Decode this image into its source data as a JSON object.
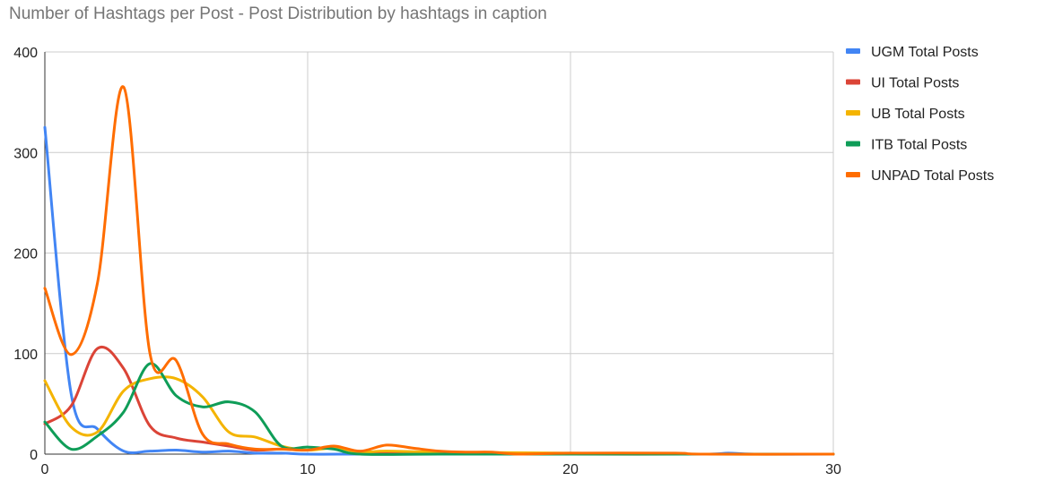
{
  "chart_data": {
    "type": "line",
    "title": "Number of Hashtags per Post - Post Distribution by hashtags in caption",
    "xlabel": "",
    "ylabel": "",
    "xlim": [
      0,
      30
    ],
    "ylim": [
      0,
      400
    ],
    "x_ticks": [
      0,
      10,
      20,
      30
    ],
    "y_ticks": [
      0,
      100,
      200,
      300,
      400
    ],
    "grid": true,
    "smooth": true,
    "legend_position": "right",
    "series": [
      {
        "name": "UGM Total Posts",
        "color": "#4285f4",
        "points": [
          [
            0,
            325
          ],
          [
            1,
            60
          ],
          [
            2,
            25
          ],
          [
            3,
            3
          ],
          [
            4,
            3
          ],
          [
            5,
            4
          ],
          [
            6,
            2
          ],
          [
            7,
            3
          ],
          [
            8,
            1
          ],
          [
            9,
            1
          ],
          [
            10,
            0
          ],
          [
            12,
            0
          ],
          [
            15,
            0
          ],
          [
            20,
            0
          ],
          [
            25,
            0
          ],
          [
            26,
            1
          ],
          [
            27,
            0
          ],
          [
            30,
            0
          ]
        ]
      },
      {
        "name": "UI Total Posts",
        "color": "#db4437",
        "points": [
          [
            0,
            30
          ],
          [
            1,
            48
          ],
          [
            2,
            105
          ],
          [
            3,
            85
          ],
          [
            4,
            28
          ],
          [
            5,
            16
          ],
          [
            6,
            12
          ],
          [
            7,
            8
          ],
          [
            8,
            4
          ],
          [
            9,
            5
          ],
          [
            10,
            4
          ],
          [
            11,
            7
          ],
          [
            12,
            2
          ],
          [
            13,
            2
          ],
          [
            15,
            1
          ],
          [
            20,
            0
          ],
          [
            25,
            0
          ],
          [
            30,
            0
          ]
        ]
      },
      {
        "name": "UB Total Posts",
        "color": "#f4b400",
        "points": [
          [
            0,
            73
          ],
          [
            1,
            27
          ],
          [
            2,
            22
          ],
          [
            3,
            63
          ],
          [
            4,
            75
          ],
          [
            5,
            75
          ],
          [
            6,
            57
          ],
          [
            7,
            22
          ],
          [
            8,
            17
          ],
          [
            9,
            8
          ],
          [
            10,
            4
          ],
          [
            11,
            6
          ],
          [
            12,
            2
          ],
          [
            13,
            3
          ],
          [
            15,
            2
          ],
          [
            20,
            1
          ],
          [
            25,
            0
          ],
          [
            30,
            0
          ]
        ]
      },
      {
        "name": "ITB Total Posts",
        "color": "#0f9d58",
        "points": [
          [
            0,
            32
          ],
          [
            1,
            5
          ],
          [
            2,
            18
          ],
          [
            3,
            42
          ],
          [
            4,
            90
          ],
          [
            5,
            58
          ],
          [
            6,
            47
          ],
          [
            7,
            52
          ],
          [
            8,
            42
          ],
          [
            9,
            8
          ],
          [
            10,
            7
          ],
          [
            11,
            5
          ],
          [
            12,
            0
          ],
          [
            15,
            0
          ],
          [
            20,
            0
          ],
          [
            25,
            0
          ],
          [
            30,
            0
          ]
        ]
      },
      {
        "name": "UNPAD Total Posts",
        "color": "#ff6d00",
        "points": [
          [
            0,
            165
          ],
          [
            1,
            99
          ],
          [
            2,
            170
          ],
          [
            3,
            365
          ],
          [
            4,
            100
          ],
          [
            5,
            93
          ],
          [
            6,
            20
          ],
          [
            7,
            10
          ],
          [
            8,
            5
          ],
          [
            9,
            5
          ],
          [
            10,
            4
          ],
          [
            11,
            8
          ],
          [
            12,
            3
          ],
          [
            13,
            9
          ],
          [
            14,
            6
          ],
          [
            15,
            3
          ],
          [
            16,
            2
          ],
          [
            17,
            2
          ],
          [
            18,
            0
          ],
          [
            20,
            1
          ],
          [
            24,
            1
          ],
          [
            25,
            0
          ],
          [
            30,
            0
          ]
        ]
      }
    ]
  }
}
